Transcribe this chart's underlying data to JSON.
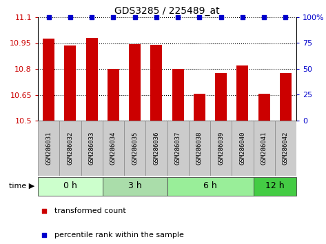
{
  "title": "GDS3285 / 225489_at",
  "samples": [
    "GSM286031",
    "GSM286032",
    "GSM286033",
    "GSM286034",
    "GSM286035",
    "GSM286036",
    "GSM286037",
    "GSM286038",
    "GSM286039",
    "GSM286040",
    "GSM286041",
    "GSM286042"
  ],
  "bar_values": [
    10.975,
    10.935,
    10.98,
    10.8,
    10.945,
    10.94,
    10.8,
    10.655,
    10.775,
    10.82,
    10.655,
    10.775
  ],
  "percentile_values": [
    100,
    100,
    100,
    100,
    100,
    100,
    100,
    100,
    100,
    100,
    100,
    100
  ],
  "bar_color": "#cc0000",
  "percentile_color": "#0000cc",
  "ylim_left": [
    10.5,
    11.1
  ],
  "ylim_right": [
    0,
    100
  ],
  "yticks_left": [
    10.5,
    10.65,
    10.8,
    10.95,
    11.1
  ],
  "yticks_right": [
    0,
    25,
    50,
    75,
    100
  ],
  "ytick_labels_left": [
    "10.5",
    "10.65",
    "10.8",
    "10.95",
    "11.1"
  ],
  "ytick_labels_right": [
    "0",
    "25",
    "50",
    "75",
    "100%"
  ],
  "group_defs": [
    {
      "start": 0,
      "end": 3,
      "color": "#ccffcc",
      "label": "0 h"
    },
    {
      "start": 3,
      "end": 6,
      "color": "#aaddaa",
      "label": "3 h"
    },
    {
      "start": 6,
      "end": 10,
      "color": "#99ee99",
      "label": "6 h"
    },
    {
      "start": 10,
      "end": 12,
      "color": "#44cc44",
      "label": "12 h"
    }
  ],
  "sample_box_color": "#cccccc",
  "title_fontsize": 10,
  "axis_fontsize": 8,
  "sample_fontsize": 6.5,
  "group_fontsize": 9
}
